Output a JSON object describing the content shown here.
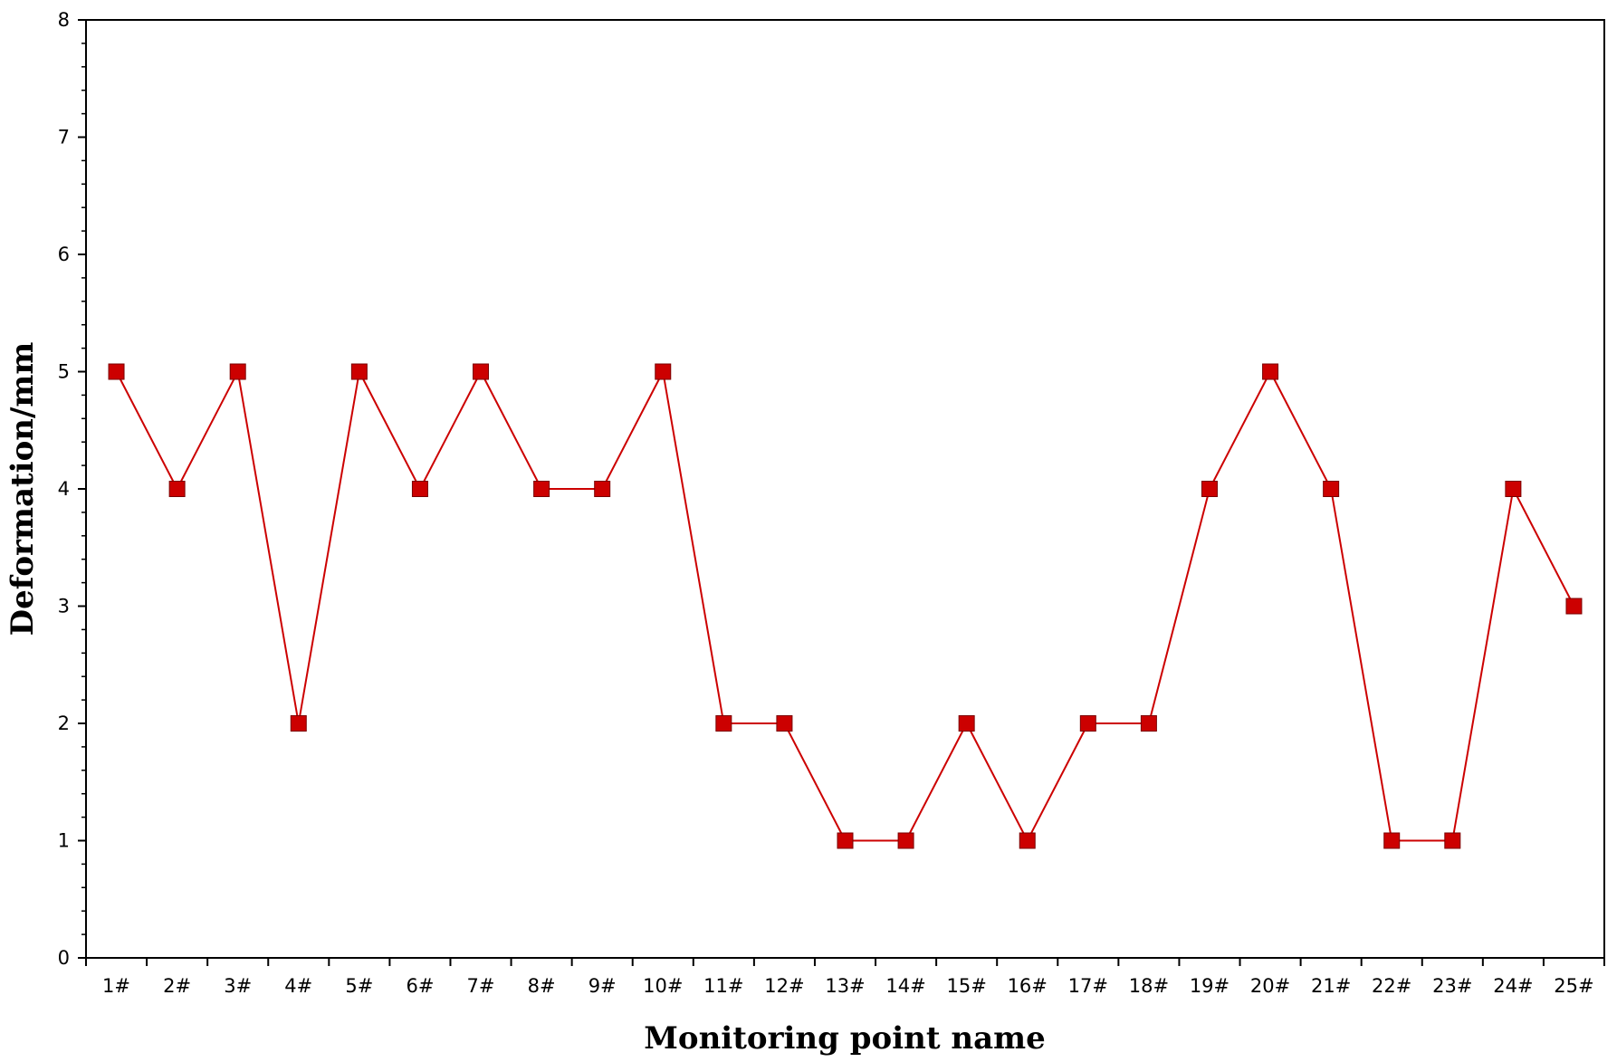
{
  "chart_data": {
    "type": "line",
    "title": "",
    "xlabel": "Monitoring point name",
    "ylabel": "Deformation/mm",
    "ylim": [
      0,
      8
    ],
    "yticks": [
      "0",
      "1",
      "2",
      "3",
      "4",
      "5",
      "6",
      "7",
      "8"
    ],
    "categories": [
      "1#",
      "2#",
      "3#",
      "4#",
      "5#",
      "6#",
      "7#",
      "8#",
      "9#",
      "10#",
      "11#",
      "12#",
      "13#",
      "14#",
      "15#",
      "16#",
      "17#",
      "18#",
      "19#",
      "20#",
      "21#",
      "22#",
      "23#",
      "24#",
      "25#"
    ],
    "series": [
      {
        "values": [
          5,
          4,
          5,
          2,
          5,
          4,
          5,
          4,
          4,
          5,
          2,
          2,
          1,
          1,
          2,
          1,
          2,
          2,
          4,
          5,
          4,
          1,
          1,
          4,
          3
        ],
        "color": "#cc0000",
        "marker": "square"
      }
    ],
    "grid": false,
    "legend": "none"
  }
}
